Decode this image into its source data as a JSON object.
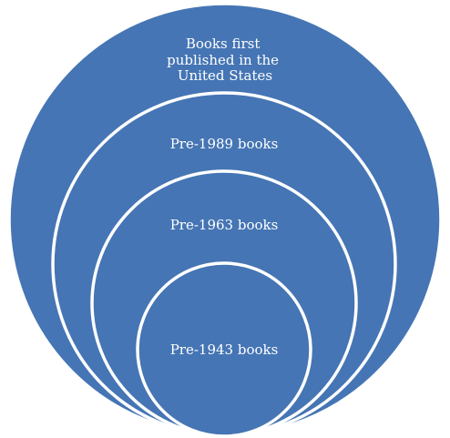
{
  "colors": {
    "fill": "#4575b4",
    "stroke": "#ffffff",
    "text": "#ffffff",
    "background": "#ffffff"
  },
  "diagram": {
    "type": "nested-circles",
    "rings": [
      {
        "label_lines": [
          "Books first",
          "published in the",
          "United States"
        ]
      },
      {
        "label_lines": [
          "Pre-1989 books"
        ]
      },
      {
        "label_lines": [
          "Pre-1963 books"
        ]
      },
      {
        "label_lines": [
          "Pre-1943 books"
        ]
      }
    ]
  }
}
